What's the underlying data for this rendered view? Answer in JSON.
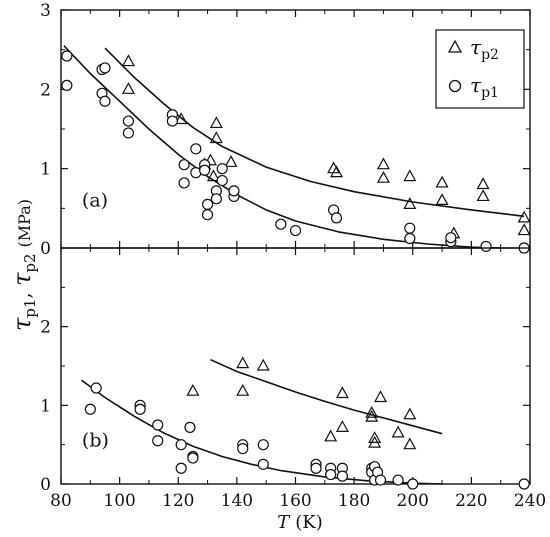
{
  "chart_data": [
    {
      "panel": "(a)",
      "type": "scatter",
      "title": "",
      "xlabel_var": "T",
      "xlabel_unit": "(K)",
      "ylabel": "τp1, τp2 (MPa)",
      "xlim": [
        80,
        240
      ],
      "ylim": [
        0,
        3
      ],
      "yticks": [
        "0",
        "1",
        "2",
        "3"
      ],
      "series": [
        {
          "name": "τp2",
          "marker": "triangle",
          "points": [
            [
              103,
              2.35
            ],
            [
              103,
              2.0
            ],
            [
              121,
              1.62
            ],
            [
              133,
              1.57
            ],
            [
              133,
              1.38
            ],
            [
              129,
              1.05
            ],
            [
              131,
              1.1
            ],
            [
              132,
              0.9
            ],
            [
              138,
              1.08
            ],
            [
              173,
              1.0
            ],
            [
              174,
              0.95
            ],
            [
              190,
              1.05
            ],
            [
              190,
              0.88
            ],
            [
              199,
              0.9
            ],
            [
              199,
              0.55
            ],
            [
              210,
              0.82
            ],
            [
              210,
              0.6
            ],
            [
              214,
              0.18
            ],
            [
              224,
              0.8
            ],
            [
              224,
              0.65
            ],
            [
              238,
              0.38
            ],
            [
              238,
              0.22
            ]
          ],
          "fit": [
            [
              95,
              2.52
            ],
            [
              105,
              2.15
            ],
            [
              115,
              1.82
            ],
            [
              125,
              1.52
            ],
            [
              135,
              1.28
            ],
            [
              150,
              1.02
            ],
            [
              165,
              0.84
            ],
            [
              180,
              0.71
            ],
            [
              200,
              0.58
            ],
            [
              220,
              0.48
            ],
            [
              238,
              0.4
            ]
          ]
        },
        {
          "name": "τp1",
          "marker": "circle",
          "points": [
            [
              82,
              2.42
            ],
            [
              82,
              2.05
            ],
            [
              94,
              2.25
            ],
            [
              95,
              2.27
            ],
            [
              94,
              1.95
            ],
            [
              95,
              1.85
            ],
            [
              103,
              1.6
            ],
            [
              103,
              1.45
            ],
            [
              118,
              1.68
            ],
            [
              118,
              1.6
            ],
            [
              122,
              1.05
            ],
            [
              122,
              0.82
            ],
            [
              126,
              1.25
            ],
            [
              126,
              0.95
            ],
            [
              129,
              1.05
            ],
            [
              129,
              0.98
            ],
            [
              130,
              0.55
            ],
            [
              130,
              0.42
            ],
            [
              133,
              0.72
            ],
            [
              133,
              0.62
            ],
            [
              135,
              1.0
            ],
            [
              135,
              0.85
            ],
            [
              139,
              0.65
            ],
            [
              139,
              0.72
            ],
            [
              155,
              0.3
            ],
            [
              160,
              0.22
            ],
            [
              173,
              0.48
            ],
            [
              174,
              0.38
            ],
            [
              199,
              0.25
            ],
            [
              199,
              0.12
            ],
            [
              213,
              0.08
            ],
            [
              213,
              0.13
            ],
            [
              225,
              0.02
            ],
            [
              238,
              0.0
            ]
          ],
          "fit": [
            [
              81,
              2.55
            ],
            [
              90,
              2.2
            ],
            [
              100,
              1.85
            ],
            [
              110,
              1.5
            ],
            [
              120,
              1.18
            ],
            [
              130,
              0.9
            ],
            [
              140,
              0.67
            ],
            [
              150,
              0.48
            ],
            [
              160,
              0.34
            ],
            [
              175,
              0.2
            ],
            [
              190,
              0.11
            ],
            [
              205,
              0.05
            ],
            [
              220,
              0.01
            ],
            [
              230,
              0.0
            ]
          ]
        }
      ]
    },
    {
      "panel": "(b)",
      "type": "scatter",
      "title": "",
      "xlabel_var": "T",
      "xlabel_unit": "(K)",
      "ylabel": "τp1, τp2 (MPa)",
      "xlim": [
        80,
        240
      ],
      "ylim": [
        0,
        3
      ],
      "yticks": [
        "0",
        "1",
        "2"
      ],
      "xticks": [
        "80",
        "100",
        "120",
        "140",
        "160",
        "180",
        "200",
        "220",
        "240"
      ],
      "series": [
        {
          "name": "τp2",
          "marker": "triangle",
          "points": [
            [
              125,
              1.18
            ],
            [
              142,
              1.53
            ],
            [
              142,
              1.18
            ],
            [
              149,
              1.5
            ],
            [
              172,
              0.6
            ],
            [
              176,
              1.15
            ],
            [
              176,
              0.72
            ],
            [
              186,
              0.9
            ],
            [
              186,
              0.85
            ],
            [
              187,
              0.58
            ],
            [
              187,
              0.52
            ],
            [
              189,
              1.1
            ],
            [
              195,
              0.65
            ],
            [
              199,
              0.88
            ],
            [
              199,
              0.5
            ]
          ],
          "fit": [
            [
              131,
              1.58
            ],
            [
              140,
              1.43
            ],
            [
              150,
              1.3
            ],
            [
              160,
              1.17
            ],
            [
              170,
              1.05
            ],
            [
              180,
              0.94
            ],
            [
              190,
              0.84
            ],
            [
              200,
              0.74
            ],
            [
              210,
              0.64
            ]
          ]
        },
        {
          "name": "τp1",
          "marker": "circle",
          "points": [
            [
              90,
              0.95
            ],
            [
              92,
              1.22
            ],
            [
              107,
              1.0
            ],
            [
              107,
              0.95
            ],
            [
              113,
              0.75
            ],
            [
              113,
              0.55
            ],
            [
              121,
              0.5
            ],
            [
              121,
              0.2
            ],
            [
              124,
              0.72
            ],
            [
              125,
              0.35
            ],
            [
              125,
              0.33
            ],
            [
              142,
              0.5
            ],
            [
              142,
              0.45
            ],
            [
              149,
              0.5
            ],
            [
              149,
              0.25
            ],
            [
              167,
              0.25
            ],
            [
              167,
              0.2
            ],
            [
              172,
              0.2
            ],
            [
              172,
              0.12
            ],
            [
              176,
              0.2
            ],
            [
              176,
              0.1
            ],
            [
              186,
              0.2
            ],
            [
              186,
              0.15
            ],
            [
              187,
              0.22
            ],
            [
              187,
              0.05
            ],
            [
              188,
              0.15
            ],
            [
              189,
              0.05
            ],
            [
              195,
              0.05
            ],
            [
              200,
              0.0
            ],
            [
              238,
              0.0
            ]
          ],
          "fit": [
            [
              87,
              1.32
            ],
            [
              95,
              1.1
            ],
            [
              105,
              0.86
            ],
            [
              115,
              0.65
            ],
            [
              125,
              0.48
            ],
            [
              135,
              0.35
            ],
            [
              145,
              0.25
            ],
            [
              155,
              0.17
            ],
            [
              170,
              0.09
            ],
            [
              185,
              0.04
            ],
            [
              200,
              0.01
            ],
            [
              210,
              0.0
            ]
          ]
        }
      ]
    }
  ],
  "legend": {
    "items": [
      {
        "marker": "triangle",
        "symbol": "τ",
        "sub": "p2"
      },
      {
        "marker": "circle",
        "symbol": "τ",
        "sub": "p1"
      }
    ]
  },
  "axis_text": {
    "ylabel_main": "τ",
    "ylabel_sub1": "p1",
    "ylabel_sep": ",  ",
    "ylabel_sub2": "p2",
    "ylabel_unit": "(MPa)",
    "xlabel_var": "T",
    "xlabel_unit": "(K)"
  }
}
